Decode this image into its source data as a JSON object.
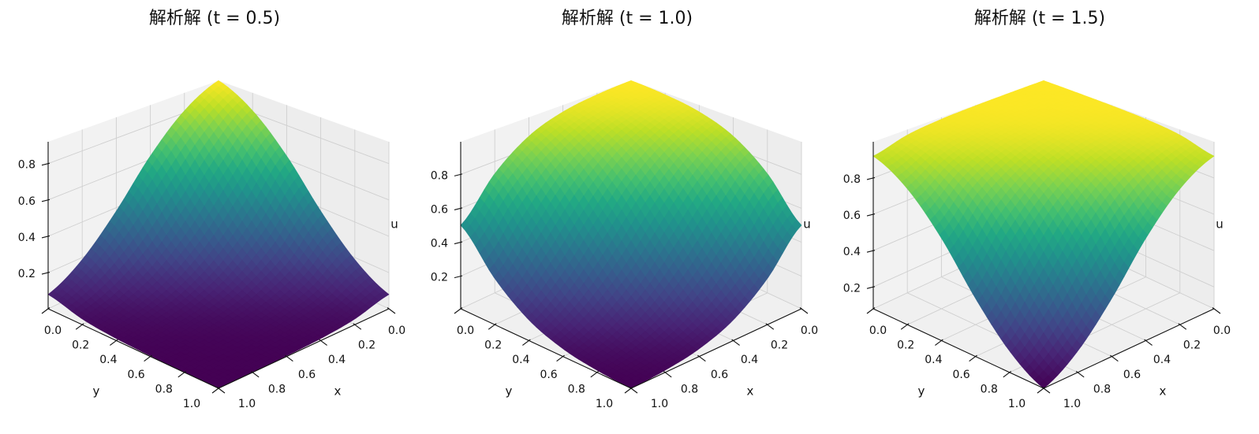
{
  "chart_data": [
    {
      "type": "surface",
      "title": "解析解 (t = 0.5)",
      "xlabel": "x",
      "ylabel": "y",
      "zlabel": "u",
      "colormap": "viridis",
      "x": [
        0,
        0.2,
        0.4,
        0.6,
        0.8,
        1.0
      ],
      "y": [
        0,
        0.2,
        0.4,
        0.6,
        0.8,
        1.0
      ],
      "z": [
        [
          0.92,
          0.812,
          0.62,
          0.38,
          0.188,
          0.08
        ],
        [
          0.812,
          0.62,
          0.38,
          0.188,
          0.08,
          0.032
        ],
        [
          0.62,
          0.38,
          0.188,
          0.08,
          0.032,
          0.012
        ],
        [
          0.38,
          0.188,
          0.08,
          0.032,
          0.012,
          0.005
        ],
        [
          0.188,
          0.08,
          0.032,
          0.012,
          0.005,
          0.002
        ],
        [
          0.08,
          0.032,
          0.012,
          0.005,
          0.002,
          0.001
        ]
      ],
      "zlim": [
        0.001,
        0.92
      ],
      "xtick_labels": [
        "0.0",
        "0.2",
        "0.4",
        "0.6",
        "0.8",
        "1.0"
      ],
      "ytick_labels": [
        "0.0",
        "0.2",
        "0.4",
        "0.6",
        "0.8",
        "1.0"
      ],
      "zticks": [
        0.2,
        0.4,
        0.6,
        0.8
      ],
      "ztick_labels": [
        "0.2",
        "0.4",
        "0.6",
        "0.8"
      ]
    },
    {
      "type": "surface",
      "title": "解析解 (t = 1.0)",
      "xlabel": "x",
      "ylabel": "y",
      "zlabel": "u",
      "colormap": "viridis",
      "x": [
        0,
        0.2,
        0.4,
        0.6,
        0.8,
        1.0
      ],
      "y": [
        0,
        0.2,
        0.4,
        0.6,
        0.8,
        1.0
      ],
      "z": [
        [
          0.992,
          0.98,
          0.949,
          0.875,
          0.726,
          0.5
        ],
        [
          0.98,
          0.949,
          0.875,
          0.726,
          0.5,
          0.274
        ],
        [
          0.949,
          0.875,
          0.726,
          0.5,
          0.274,
          0.125
        ],
        [
          0.875,
          0.726,
          0.5,
          0.274,
          0.125,
          0.051
        ],
        [
          0.726,
          0.5,
          0.274,
          0.125,
          0.051,
          0.02
        ],
        [
          0.5,
          0.274,
          0.125,
          0.051,
          0.02,
          0.008
        ]
      ],
      "zlim": [
        0.008,
        0.992
      ],
      "xtick_labels": [
        "0.0",
        "0.2",
        "0.4",
        "0.6",
        "0.8",
        "1.0"
      ],
      "ytick_labels": [
        "0.0",
        "0.2",
        "0.4",
        "0.6",
        "0.8",
        "1.0"
      ],
      "zticks": [
        0.2,
        0.4,
        0.6,
        0.8
      ],
      "ztick_labels": [
        "0.2",
        "0.4",
        "0.6",
        "0.8"
      ]
    },
    {
      "type": "surface",
      "title": "解析解 (t = 1.5)",
      "xlabel": "x",
      "ylabel": "y",
      "zlabel": "u",
      "colormap": "viridis",
      "x": [
        0,
        0.2,
        0.4,
        0.6,
        0.8,
        1.0
      ],
      "y": [
        0,
        0.2,
        0.4,
        0.6,
        0.8,
        1.0
      ],
      "z": [
        [
          0.999,
          0.998,
          0.995,
          0.988,
          0.968,
          0.92
        ],
        [
          0.998,
          0.995,
          0.988,
          0.968,
          0.92,
          0.812
        ],
        [
          0.995,
          0.988,
          0.968,
          0.92,
          0.812,
          0.62
        ],
        [
          0.988,
          0.968,
          0.92,
          0.812,
          0.62,
          0.38
        ],
        [
          0.968,
          0.92,
          0.812,
          0.62,
          0.38,
          0.188
        ],
        [
          0.92,
          0.812,
          0.62,
          0.38,
          0.188,
          0.08
        ]
      ],
      "zlim": [
        0.08,
        0.999
      ],
      "xtick_labels": [
        "0.0",
        "0.2",
        "0.4",
        "0.6",
        "0.8",
        "1.0"
      ],
      "ytick_labels": [
        "0.0",
        "0.2",
        "0.4",
        "0.6",
        "0.8",
        "1.0"
      ],
      "zticks": [
        0.2,
        0.4,
        0.6,
        0.8
      ],
      "ztick_labels": [
        "0.2",
        "0.4",
        "0.6",
        "0.8"
      ]
    }
  ]
}
